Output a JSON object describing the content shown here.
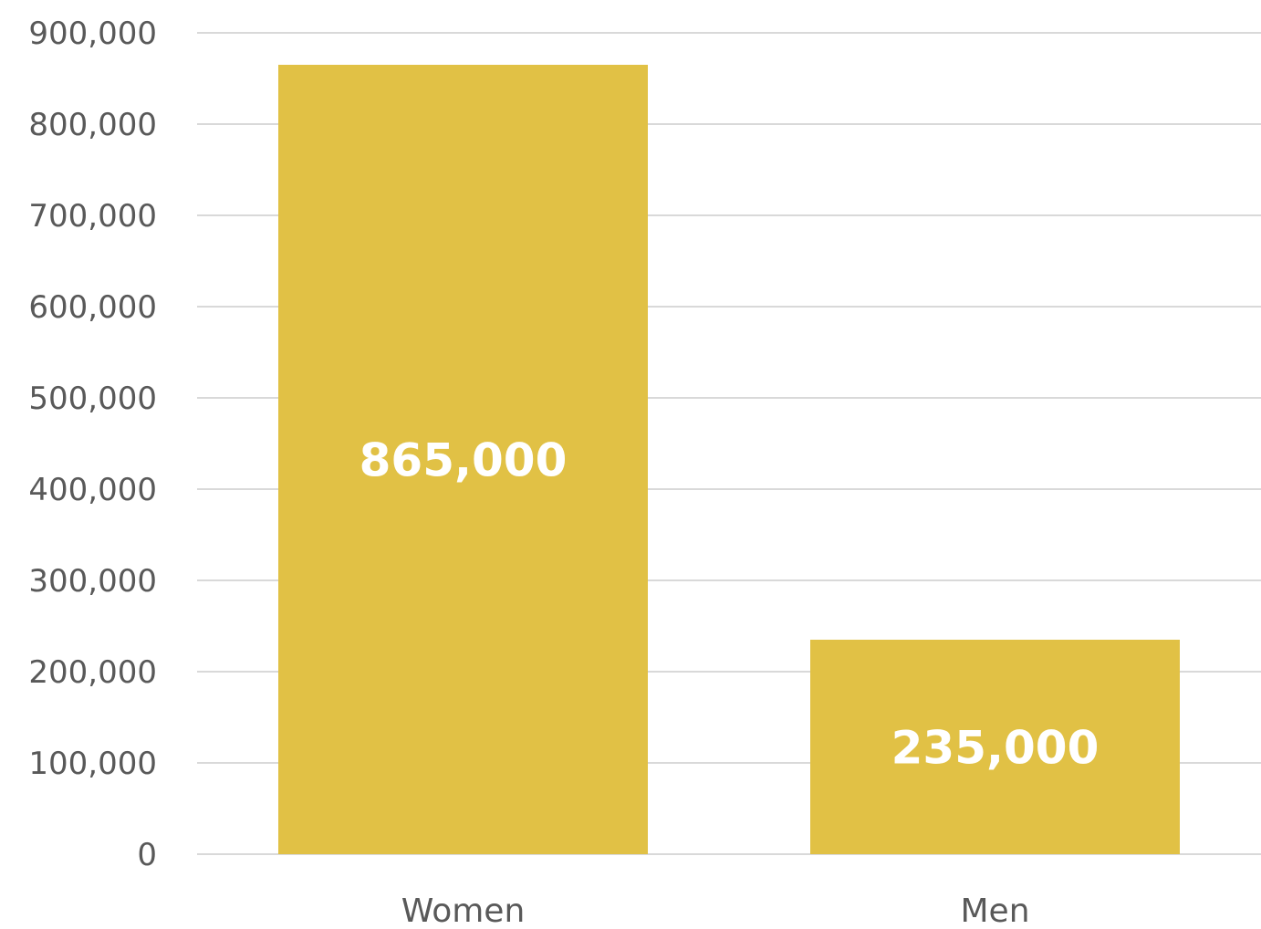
{
  "chart_data": {
    "type": "bar",
    "categories": [
      "Women",
      "Men"
    ],
    "values": [
      865000,
      235000
    ],
    "data_labels": [
      "865,000",
      "235,000"
    ],
    "ylim": [
      0,
      900000
    ],
    "yticks": [
      0,
      100000,
      200000,
      300000,
      400000,
      500000,
      600000,
      700000,
      800000,
      900000
    ],
    "ytick_labels": [
      "0",
      "100,000",
      "200,000",
      "300,000",
      "400,000",
      "500,000",
      "600,000",
      "700,000",
      "800,000",
      "900,000"
    ],
    "title": "",
    "xlabel": "",
    "ylabel": "",
    "grid": true,
    "legend": "none",
    "bar_color": "#E1C145",
    "label_color": "#FFFFFF",
    "grid_color": "#D9D9D9",
    "axis_text_color": "#595959"
  }
}
